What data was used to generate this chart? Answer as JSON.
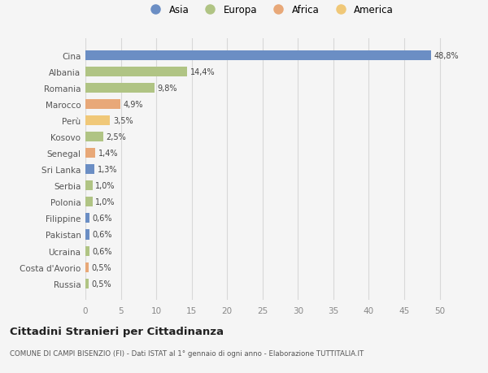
{
  "categories": [
    "Russia",
    "Costa d'Avorio",
    "Ucraina",
    "Pakistan",
    "Filippine",
    "Polonia",
    "Serbia",
    "Sri Lanka",
    "Senegal",
    "Kosovo",
    "Perù",
    "Marocco",
    "Romania",
    "Albania",
    "Cina"
  ],
  "values": [
    0.5,
    0.5,
    0.6,
    0.6,
    0.6,
    1.0,
    1.0,
    1.3,
    1.4,
    2.5,
    3.5,
    4.9,
    9.8,
    14.4,
    48.8
  ],
  "labels": [
    "0,5%",
    "0,5%",
    "0,6%",
    "0,6%",
    "0,6%",
    "1,0%",
    "1,0%",
    "1,3%",
    "1,4%",
    "2,5%",
    "3,5%",
    "4,9%",
    "9,8%",
    "14,4%",
    "48,8%"
  ],
  "colors": [
    "#b0c484",
    "#e8a878",
    "#b0c484",
    "#6b8ec4",
    "#6b8ec4",
    "#b0c484",
    "#b0c484",
    "#6b8ec4",
    "#e8a878",
    "#b0c484",
    "#f0c878",
    "#e8a878",
    "#b0c484",
    "#b0c484",
    "#6b8ec4"
  ],
  "legend_labels": [
    "Asia",
    "Europa",
    "Africa",
    "America"
  ],
  "legend_colors": [
    "#6b8ec4",
    "#b0c484",
    "#e8a878",
    "#f0c878"
  ],
  "xlim": [
    0,
    52
  ],
  "xticks": [
    0,
    5,
    10,
    15,
    20,
    25,
    30,
    35,
    40,
    45,
    50
  ],
  "title": "Cittadini Stranieri per Cittadinanza",
  "subtitle": "COMUNE DI CAMPI BISENZIO (FI) - Dati ISTAT al 1° gennaio di ogni anno - Elaborazione TUTTITALIA.IT",
  "bg_color": "#f5f5f5",
  "grid_color": "#d8d8d8",
  "bar_height": 0.6
}
